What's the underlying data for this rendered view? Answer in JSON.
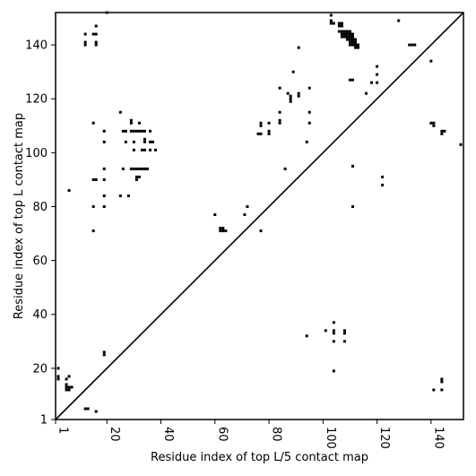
{
  "chart_data": {
    "type": "scatter",
    "xlabel": "Residue index of top L/5 contact map",
    "ylabel": "Residue index of top L contact map",
    "xlim": [
      1,
      152
    ],
    "ylim": [
      1,
      152
    ],
    "x_ticks": [
      1,
      20,
      40,
      60,
      80,
      100,
      120,
      140
    ],
    "y_ticks": [
      1,
      20,
      40,
      60,
      80,
      100,
      120,
      140
    ],
    "x_tick_labels": [
      "1",
      "20",
      "40",
      "60",
      "80",
      "100",
      "120",
      "140"
    ],
    "y_tick_labels": [
      "1",
      "20",
      "40",
      "60",
      "80",
      "100",
      "120",
      "140"
    ],
    "grid": false,
    "diagonal": true,
    "marker_color": "#000000",
    "series": [
      {
        "points": [
          [
            2,
            20
          ],
          [
            2,
            17
          ],
          [
            2,
            16
          ],
          [
            5,
            16
          ],
          [
            6,
            17
          ],
          [
            5,
            14
          ],
          [
            5,
            13
          ],
          [
            5,
            12
          ],
          [
            6,
            12
          ],
          [
            6,
            13
          ],
          [
            7,
            13
          ],
          [
            12,
            5
          ],
          [
            13,
            5
          ],
          [
            16,
            4
          ],
          [
            19,
            26
          ],
          [
            19,
            25
          ],
          [
            20,
            152
          ],
          [
            12,
            144
          ],
          [
            12,
            141
          ],
          [
            12,
            140
          ],
          [
            15,
            144
          ],
          [
            16,
            144
          ],
          [
            16,
            147
          ],
          [
            16,
            141
          ],
          [
            16,
            140
          ],
          [
            6,
            86
          ],
          [
            15,
            111
          ],
          [
            15,
            90
          ],
          [
            16,
            90
          ],
          [
            19,
            108
          ],
          [
            19,
            104
          ],
          [
            19,
            94
          ],
          [
            19,
            90
          ],
          [
            19,
            84
          ],
          [
            19,
            80
          ],
          [
            15,
            80
          ],
          [
            15,
            71
          ],
          [
            25,
            115
          ],
          [
            26,
            108
          ],
          [
            27,
            108
          ],
          [
            27,
            104
          ],
          [
            29,
            112
          ],
          [
            29,
            111
          ],
          [
            29,
            108
          ],
          [
            30,
            108
          ],
          [
            31,
            108
          ],
          [
            32,
            108
          ],
          [
            33,
            108
          ],
          [
            34,
            108
          ],
          [
            36,
            108
          ],
          [
            30,
            104
          ],
          [
            32,
            111
          ],
          [
            34,
            104
          ],
          [
            34,
            105
          ],
          [
            36,
            104
          ],
          [
            37,
            104
          ],
          [
            33,
            101
          ],
          [
            34,
            101
          ],
          [
            36,
            101
          ],
          [
            38,
            101
          ],
          [
            30,
            101
          ],
          [
            29,
            94
          ],
          [
            30,
            94
          ],
          [
            31,
            94
          ],
          [
            32,
            94
          ],
          [
            33,
            94
          ],
          [
            34,
            94
          ],
          [
            35,
            94
          ],
          [
            26,
            94
          ],
          [
            25,
            84
          ],
          [
            28,
            84
          ],
          [
            31,
            91
          ],
          [
            32,
            91
          ],
          [
            31,
            90
          ],
          [
            60,
            77
          ],
          [
            62,
            72
          ],
          [
            63,
            72
          ],
          [
            62,
            71
          ],
          [
            63,
            71
          ],
          [
            64,
            71
          ],
          [
            71,
            77
          ],
          [
            72,
            80
          ],
          [
            77,
            71
          ],
          [
            76,
            107
          ],
          [
            77,
            107
          ],
          [
            77,
            110
          ],
          [
            77,
            111
          ],
          [
            80,
            108
          ],
          [
            80,
            107
          ],
          [
            80,
            111
          ],
          [
            84,
            124
          ],
          [
            84,
            115
          ],
          [
            84,
            112
          ],
          [
            84,
            111
          ],
          [
            86,
            94
          ],
          [
            87,
            122
          ],
          [
            88,
            121
          ],
          [
            88,
            120
          ],
          [
            88,
            119
          ],
          [
            89,
            130
          ],
          [
            91,
            139
          ],
          [
            91,
            122
          ],
          [
            91,
            121
          ],
          [
            94,
            104
          ],
          [
            95,
            124
          ],
          [
            95,
            115
          ],
          [
            95,
            111
          ],
          [
            103,
            151
          ],
          [
            103,
            149
          ],
          [
            103,
            148
          ],
          [
            104,
            148
          ],
          [
            106,
            148
          ],
          [
            107,
            148
          ],
          [
            106,
            147
          ],
          [
            107,
            147
          ],
          [
            106,
            145
          ],
          [
            107,
            145
          ],
          [
            108,
            145
          ],
          [
            109,
            145
          ],
          [
            110,
            145
          ],
          [
            107,
            144
          ],
          [
            108,
            144
          ],
          [
            109,
            144
          ],
          [
            110,
            144
          ],
          [
            111,
            144
          ],
          [
            107,
            143
          ],
          [
            108,
            143
          ],
          [
            109,
            143
          ],
          [
            110,
            143
          ],
          [
            111,
            143
          ],
          [
            109,
            142
          ],
          [
            110,
            142
          ],
          [
            111,
            142
          ],
          [
            112,
            142
          ],
          [
            110,
            141
          ],
          [
            111,
            141
          ],
          [
            112,
            141
          ],
          [
            110,
            140
          ],
          [
            111,
            140
          ],
          [
            112,
            140
          ],
          [
            113,
            140
          ],
          [
            112,
            139
          ],
          [
            113,
            139
          ],
          [
            110,
            127
          ],
          [
            111,
            127
          ],
          [
            116,
            122
          ],
          [
            118,
            126
          ],
          [
            120,
            132
          ],
          [
            120,
            129
          ],
          [
            120,
            126
          ],
          [
            128,
            149
          ],
          [
            132,
            140
          ],
          [
            133,
            140
          ],
          [
            134,
            140
          ],
          [
            140,
            134
          ],
          [
            140,
            111
          ],
          [
            141,
            111
          ],
          [
            141,
            110
          ],
          [
            144,
            108
          ],
          [
            145,
            108
          ],
          [
            144,
            107
          ],
          [
            151,
            103
          ],
          [
            111,
            95
          ],
          [
            111,
            80
          ],
          [
            122,
            91
          ],
          [
            122,
            88
          ],
          [
            94,
            32
          ],
          [
            101,
            34
          ],
          [
            104,
            37
          ],
          [
            104,
            34
          ],
          [
            104,
            33
          ],
          [
            104,
            30
          ],
          [
            104,
            19
          ],
          [
            108,
            34
          ],
          [
            108,
            33
          ],
          [
            108,
            30
          ],
          [
            141,
            12
          ],
          [
            144,
            16
          ],
          [
            144,
            15
          ],
          [
            144,
            12
          ]
        ]
      }
    ]
  }
}
